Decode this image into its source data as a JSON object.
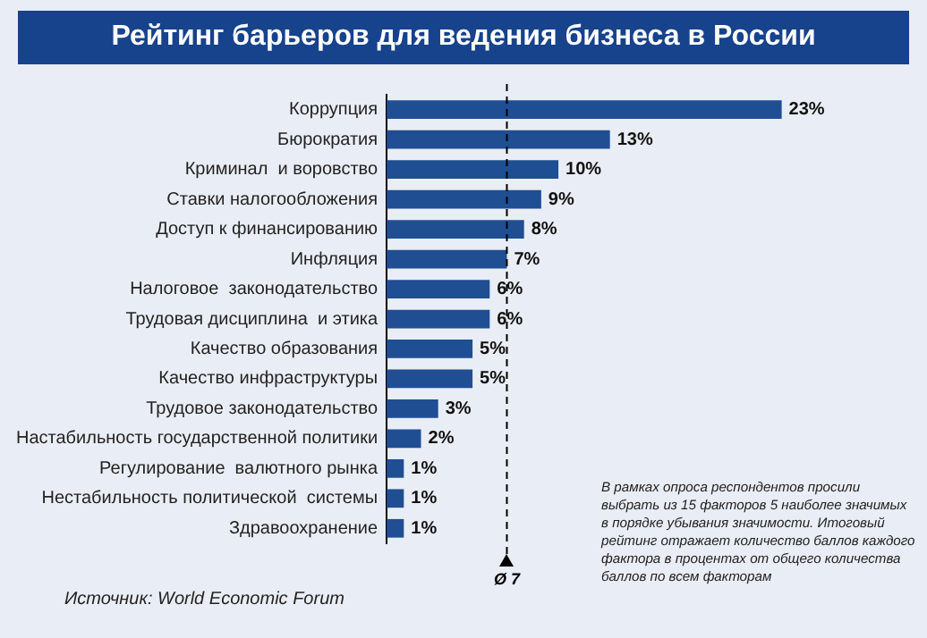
{
  "chart_data": {
    "type": "bar",
    "orientation": "horizontal",
    "title": "Рейтинг барьеров для ведения бизнеса в России",
    "categories": [
      "Коррупция",
      "Бюрократия",
      "Криминал  и воровство",
      "Ставки налогообложения",
      "Доступ к финансированию",
      "Инфляция",
      "Налоговое  законодательство",
      "Трудовая дисциплина  и этика",
      "Качество образования",
      "Качество инфраструктуры",
      "Трудовое законодательство",
      "Настабильность государственной политики",
      "Регулирование  валютного рынка",
      "Нестабильность политической  системы",
      "Здравоохранение"
    ],
    "values": [
      23,
      13,
      10,
      9,
      8,
      7,
      6,
      6,
      5,
      5,
      3,
      2,
      1,
      1,
      1
    ],
    "value_labels": [
      "23%",
      "13%",
      "10%",
      "9%",
      "8%",
      "7%",
      "6%",
      "6%",
      "5%",
      "5%",
      "3%",
      "2%",
      "1%",
      "1%",
      "1%"
    ],
    "color": "#1f4e93",
    "tick_labels": "y",
    "grid": false,
    "legend": false,
    "ref_lines": [
      {
        "axis": "x",
        "value": 7,
        "label": "Ø 7",
        "line_style": "dashed",
        "color": "#000000"
      }
    ],
    "annotations": [
      "Источник: World Economic Forum",
      "В рамках опроса респондентов просили выбрать из 15 факторов 5 наиболее значимых в порядке убывания значимости. Итоговый рейтинг отражает количество баллов каждого фактора в процентах от общего количества баллов по всем факторам"
    ]
  }
}
